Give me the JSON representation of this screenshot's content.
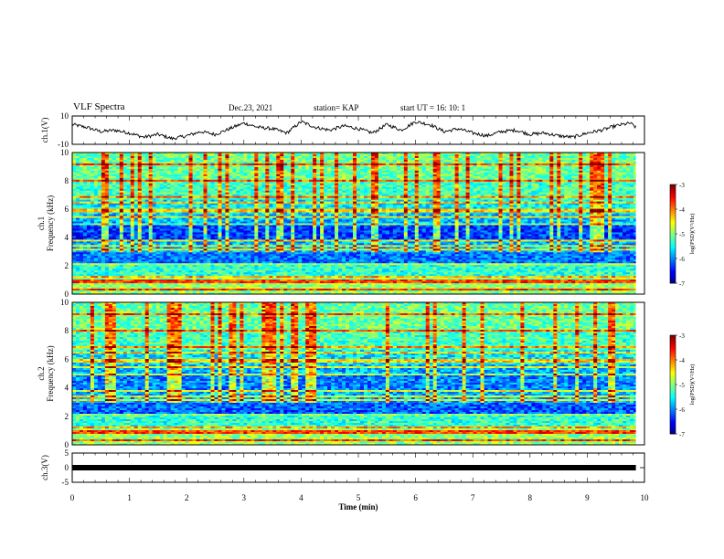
{
  "header": {
    "title": "VLF Spectra",
    "date": "Dec.23, 2021",
    "station": "station= KAP",
    "start": "start  UT =   16: 10: 1"
  },
  "colors": {
    "trace": "#000000",
    "frame": "#000000",
    "background": "#ffffff"
  },
  "chart_data": [
    {
      "type": "line",
      "ylabel": "ch.1(V)",
      "ylim": [
        -10,
        10
      ],
      "yticks": [
        "10",
        "-10"
      ],
      "xlim": [
        0,
        10
      ],
      "x": [
        0,
        0.25,
        0.5,
        0.75,
        1.0,
        1.25,
        1.5,
        1.75,
        2.0,
        2.25,
        2.5,
        2.75,
        3.0,
        3.25,
        3.5,
        3.75,
        4.0,
        4.25,
        4.5,
        4.75,
        5.0,
        5.25,
        5.5,
        5.75,
        6.0,
        6.25,
        6.5,
        6.75,
        7.0,
        7.25,
        7.5,
        7.75,
        8.0,
        8.25,
        8.5,
        8.75,
        9.0,
        9.25,
        9.5,
        9.75,
        9.85
      ],
      "values": [
        4,
        2,
        -1,
        0,
        -2,
        -5,
        -3,
        -6,
        -4,
        -1,
        -3,
        1,
        5,
        2,
        1,
        -2,
        6,
        2,
        0,
        3,
        1,
        -2,
        4,
        0,
        6,
        4,
        -1,
        1,
        -2,
        -4,
        -1,
        0,
        -3,
        -2,
        -4,
        -5,
        -2,
        0,
        3,
        5,
        2
      ]
    },
    {
      "type": "heatmap",
      "ylabel": "ch.1\nFrequency (kHz)",
      "ylim": [
        0,
        10
      ],
      "yticks": [
        "0",
        "2",
        "4",
        "6",
        "8",
        "10"
      ],
      "xlim": [
        0,
        10
      ],
      "colorbar": {
        "label": "log(PSD)(V²/Hz)",
        "range": [
          -7,
          -3
        ],
        "ticks": [
          "-3",
          "-4",
          "-5",
          "-6",
          "-7"
        ]
      }
    },
    {
      "type": "heatmap",
      "ylabel": "ch.2\nFrequency (kHz)",
      "ylim": [
        0,
        10
      ],
      "yticks": [
        "0",
        "2",
        "4",
        "6",
        "8",
        "10"
      ],
      "xlim": [
        0,
        10
      ],
      "colorbar": {
        "label": "log(PSD)(V²/Hz)",
        "range": [
          -7,
          -3
        ],
        "ticks": [
          "-3",
          "-4",
          "-5",
          "-6",
          "-7"
        ]
      }
    },
    {
      "type": "line",
      "ylabel": "ch.3(V)",
      "ylim": [
        -5,
        5
      ],
      "yticks": [
        "5",
        "0",
        "-5"
      ],
      "xlim": [
        0,
        10
      ],
      "x": [
        0,
        9.85
      ],
      "values": [
        0,
        0
      ]
    }
  ],
  "xaxis": {
    "label": "Time (min)",
    "ticks": [
      "0",
      "1",
      "2",
      "3",
      "4",
      "5",
      "6",
      "7",
      "8",
      "9",
      "10"
    ]
  }
}
